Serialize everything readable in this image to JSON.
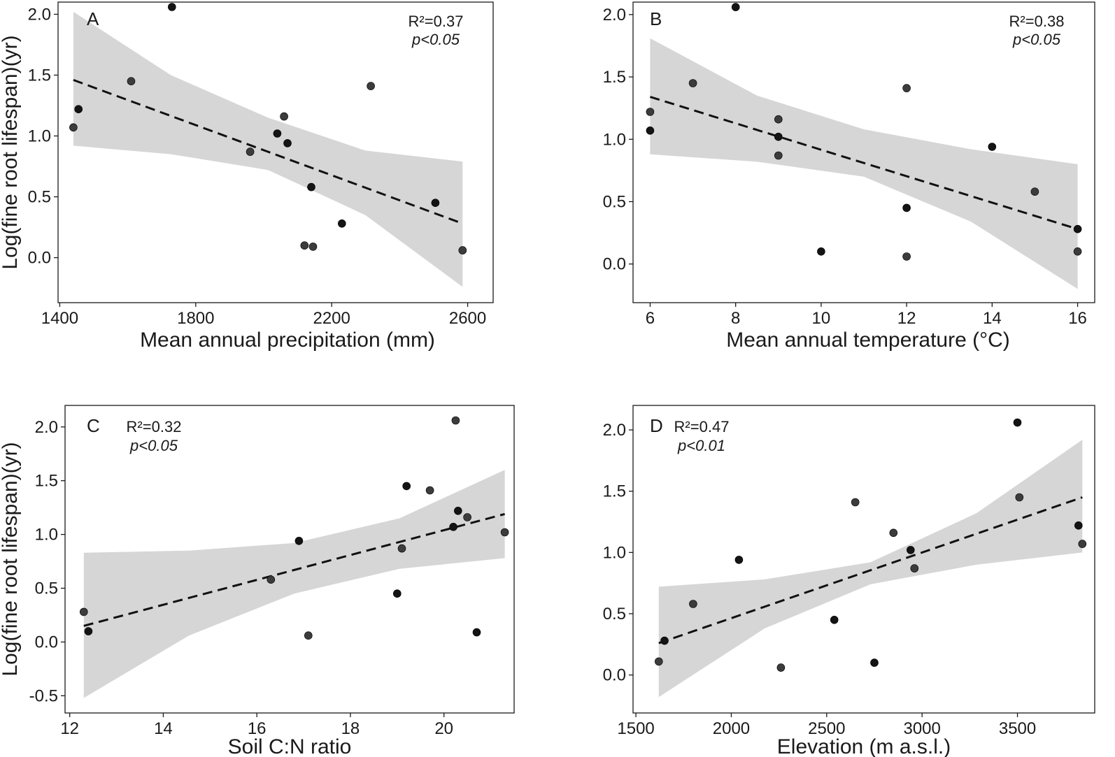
{
  "chart_data": [
    {
      "panel": "A",
      "type": "scatter",
      "xlabel": "Mean annual precipitation (mm)",
      "ylabel": "Log(fine root lifespan)(yr)",
      "xlim": [
        1395,
        2675
      ],
      "ylim": [
        -0.37,
        2.1
      ],
      "xticks": [
        1400,
        1800,
        2200,
        2600
      ],
      "yticks": [
        0.0,
        0.5,
        1.0,
        1.5,
        2.0
      ],
      "stats": {
        "r2": "R²=0.37",
        "p": "p<0.05"
      },
      "points": [
        {
          "x": 1440,
          "y": 1.07
        },
        {
          "x": 1455,
          "y": 1.22
        },
        {
          "x": 1610,
          "y": 1.45
        },
        {
          "x": 1730,
          "y": 2.06
        },
        {
          "x": 1960,
          "y": 0.87
        },
        {
          "x": 2040,
          "y": 1.02
        },
        {
          "x": 2060,
          "y": 1.16
        },
        {
          "x": 2070,
          "y": 0.94
        },
        {
          "x": 2120,
          "y": 0.1
        },
        {
          "x": 2140,
          "y": 0.58
        },
        {
          "x": 2145,
          "y": 0.09
        },
        {
          "x": 2230,
          "y": 0.28
        },
        {
          "x": 2315,
          "y": 1.41
        },
        {
          "x": 2505,
          "y": 0.45
        },
        {
          "x": 2585,
          "y": 0.06
        }
      ],
      "fit": {
        "x": [
          1440,
          2585
        ],
        "y": [
          1.46,
          0.28
        ]
      },
      "ci_band": {
        "x": [
          1440,
          1727,
          2013,
          2299,
          2585
        ],
        "lower": [
          0.92,
          0.85,
          0.72,
          0.35,
          -0.24
        ],
        "upper": [
          2.02,
          1.5,
          1.15,
          0.88,
          0.79
        ]
      }
    },
    {
      "panel": "B",
      "type": "scatter",
      "xlabel": "Mean annual temperature (°C)",
      "ylabel": "",
      "xlim": [
        5.6,
        16.4
      ],
      "ylim": [
        -0.31,
        2.1
      ],
      "xticks": [
        6,
        8,
        10,
        12,
        14,
        16
      ],
      "yticks": [
        0.0,
        0.5,
        1.0,
        1.5,
        2.0
      ],
      "stats": {
        "r2": "R²=0.38",
        "p": "p<0.05"
      },
      "points": [
        {
          "x": 6,
          "y": 1.22
        },
        {
          "x": 6,
          "y": 1.07
        },
        {
          "x": 7,
          "y": 1.45
        },
        {
          "x": 8,
          "y": 2.06
        },
        {
          "x": 9,
          "y": 1.16
        },
        {
          "x": 9,
          "y": 1.02
        },
        {
          "x": 9,
          "y": 0.87
        },
        {
          "x": 10,
          "y": 0.1
        },
        {
          "x": 12,
          "y": 1.41
        },
        {
          "x": 12,
          "y": 0.45
        },
        {
          "x": 12,
          "y": 0.06
        },
        {
          "x": 14,
          "y": 0.94
        },
        {
          "x": 15,
          "y": 0.58
        },
        {
          "x": 16,
          "y": 0.28
        },
        {
          "x": 16,
          "y": 0.1
        }
      ],
      "fit": {
        "x": [
          6,
          16
        ],
        "y": [
          1.34,
          0.28
        ]
      },
      "ci_band": {
        "x": [
          6,
          8.5,
          11,
          13.5,
          16
        ],
        "lower": [
          0.88,
          0.82,
          0.7,
          0.34,
          -0.2
        ],
        "upper": [
          1.81,
          1.35,
          1.08,
          0.92,
          0.8
        ]
      }
    },
    {
      "panel": "C",
      "type": "scatter",
      "xlabel": "Soil C:N ratio",
      "ylabel": "Log(fine root lifespan)(yr)",
      "xlim": [
        11.9,
        21.5
      ],
      "ylim": [
        -0.66,
        2.2
      ],
      "xticks": [
        12,
        14,
        16,
        18,
        20
      ],
      "yticks": [
        -0.5,
        0.0,
        0.5,
        1.0,
        1.5,
        2.0
      ],
      "stats": {
        "r2": "R²=0.32",
        "p": "p<0.05"
      },
      "points": [
        {
          "x": 12.3,
          "y": 0.28
        },
        {
          "x": 12.4,
          "y": 0.1
        },
        {
          "x": 16.3,
          "y": 0.58
        },
        {
          "x": 16.9,
          "y": 0.94
        },
        {
          "x": 17.1,
          "y": 0.06
        },
        {
          "x": 19.0,
          "y": 0.45
        },
        {
          "x": 19.1,
          "y": 0.87
        },
        {
          "x": 19.2,
          "y": 1.45
        },
        {
          "x": 19.7,
          "y": 1.41
        },
        {
          "x": 20.2,
          "y": 1.07
        },
        {
          "x": 20.25,
          "y": 2.06
        },
        {
          "x": 20.3,
          "y": 1.22
        },
        {
          "x": 20.5,
          "y": 1.16
        },
        {
          "x": 20.7,
          "y": 0.09
        },
        {
          "x": 21.3,
          "y": 1.02
        }
      ],
      "fit": {
        "x": [
          12.3,
          21.3
        ],
        "y": [
          0.15,
          1.19
        ]
      },
      "ci_band": {
        "x": [
          12.3,
          14.55,
          16.8,
          19.05,
          21.3
        ],
        "lower": [
          -0.52,
          0.06,
          0.45,
          0.68,
          0.78
        ],
        "upper": [
          0.83,
          0.85,
          0.92,
          1.15,
          1.6
        ]
      }
    },
    {
      "panel": "D",
      "type": "scatter",
      "xlabel": "Elevation (m a.s.l.)",
      "ylabel": "",
      "xlim": [
        1485,
        3905
      ],
      "ylim": [
        -0.31,
        2.2
      ],
      "xticks": [
        1500,
        2000,
        2500,
        3000,
        3500
      ],
      "yticks": [
        0.0,
        0.5,
        1.0,
        1.5,
        2.0
      ],
      "stats": {
        "r2": "R²=0.47",
        "p": "p<0.01"
      },
      "points": [
        {
          "x": 1620,
          "y": 0.11
        },
        {
          "x": 1650,
          "y": 0.28
        },
        {
          "x": 1800,
          "y": 0.58
        },
        {
          "x": 2040,
          "y": 0.94
        },
        {
          "x": 2260,
          "y": 0.06
        },
        {
          "x": 2540,
          "y": 0.45
        },
        {
          "x": 2650,
          "y": 1.41
        },
        {
          "x": 2750,
          "y": 0.1
        },
        {
          "x": 2850,
          "y": 1.16
        },
        {
          "x": 2940,
          "y": 1.02
        },
        {
          "x": 2960,
          "y": 0.87
        },
        {
          "x": 3500,
          "y": 2.06
        },
        {
          "x": 3510,
          "y": 1.45
        },
        {
          "x": 3820,
          "y": 1.22
        },
        {
          "x": 3840,
          "y": 1.07
        }
      ],
      "fit": {
        "x": [
          1620,
          3840
        ],
        "y": [
          0.26,
          1.45
        ]
      },
      "ci_band": {
        "x": [
          1620,
          2175,
          2730,
          3285,
          3840
        ],
        "lower": [
          -0.18,
          0.38,
          0.74,
          0.9,
          1.0
        ],
        "upper": [
          0.72,
          0.78,
          0.92,
          1.32,
          1.92
        ]
      }
    }
  ]
}
